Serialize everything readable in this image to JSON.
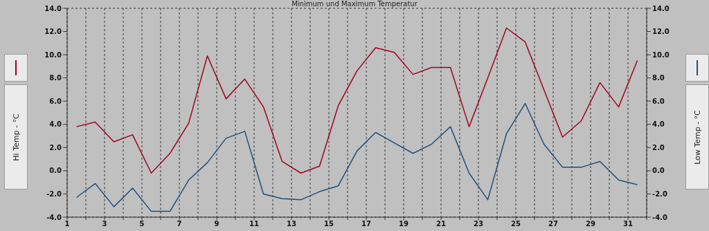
{
  "chart_data": {
    "type": "line",
    "title": "Minimum und Maximum Temperatur",
    "ylabel": "Hi Temp - °C",
    "y2label": "Low Temp - °C",
    "x": [
      1.5,
      2.5,
      3.5,
      4.5,
      5.5,
      6.5,
      7.5,
      8.5,
      9.5,
      10.5,
      11.5,
      12.5,
      13.5,
      14.5,
      15.5,
      16.5,
      17.5,
      18.5,
      19.5,
      20.5,
      21.5,
      22.5,
      23.5,
      24.5,
      25.5,
      26.5,
      27.5,
      28.5,
      29.5,
      30.5,
      31.5
    ],
    "series": [
      {
        "color": "#a0001e",
        "values": [
          3.8,
          4.2,
          2.5,
          3.1,
          -0.2,
          1.5,
          4.1,
          9.9,
          6.2,
          7.9,
          5.5,
          0.8,
          -0.2,
          0.4,
          5.6,
          8.6,
          10.6,
          10.2,
          8.3,
          8.9,
          8.9,
          3.8,
          8.0,
          12.3,
          11.1,
          7.0,
          2.9,
          4.3,
          7.6,
          5.5,
          9.5
        ]
      },
      {
        "color": "#1f4e79",
        "axis": "y2",
        "values": [
          -2.3,
          -1.1,
          -3.1,
          -1.5,
          -3.5,
          -3.5,
          -0.8,
          0.7,
          2.8,
          3.4,
          -2.0,
          -2.4,
          -2.5,
          -1.8,
          -1.3,
          1.7,
          3.3,
          2.4,
          1.5,
          2.3,
          3.8,
          -0.2,
          -2.5,
          3.2,
          5.8,
          2.3,
          0.3,
          0.3,
          0.8,
          -0.8,
          -1.2
        ]
      }
    ],
    "xlim": [
      1,
      32
    ],
    "xticks": [
      1,
      {
        "value": 2,
        "label": null
      },
      3,
      {
        "value": 4,
        "label": null
      },
      5,
      {
        "value": 6,
        "label": null
      },
      7,
      {
        "value": 8,
        "label": null
      },
      9,
      {
        "value": 10,
        "label": null
      },
      11,
      {
        "value": 12,
        "label": null
      },
      13,
      {
        "value": 14,
        "label": null
      },
      15,
      {
        "value": 16,
        "label": null
      },
      17,
      {
        "value": 18,
        "label": null
      },
      19,
      {
        "value": 20,
        "label": null
      },
      21,
      {
        "value": 22,
        "label": null
      },
      23,
      {
        "value": 24,
        "label": null
      },
      25,
      {
        "value": 26,
        "label": null
      },
      27,
      {
        "value": 28,
        "label": null
      },
      29,
      {
        "value": 30,
        "label": null
      },
      31,
      {
        "value": 32,
        "label": null
      }
    ],
    "ylim": [
      -4,
      14
    ],
    "yticks": [
      {
        "value": -4,
        "label": "-4.0"
      },
      {
        "value": -2,
        "label": "-2.0"
      },
      {
        "value": 0,
        "label": "0.0"
      },
      {
        "value": 2,
        "label": "2.0"
      },
      {
        "value": 4,
        "label": "4.0"
      },
      {
        "value": 6,
        "label": "6.0"
      },
      {
        "value": 8,
        "label": "8.0"
      },
      {
        "value": 10,
        "label": "10.0"
      },
      {
        "value": 12,
        "label": "12.0"
      },
      {
        "value": 14,
        "label": "14.0"
      }
    ],
    "y2lim": [
      -4,
      14
    ],
    "y2ticks": [
      {
        "value": -4,
        "label": "-4.0"
      },
      {
        "value": -2,
        "label": "-2.0"
      },
      {
        "value": 0,
        "label": "0.0"
      },
      {
        "value": 2,
        "label": "2.0"
      },
      {
        "value": 4,
        "label": "4.0"
      },
      {
        "value": 6,
        "label": "6.0"
      },
      {
        "value": 8,
        "label": "8.0"
      },
      {
        "value": 10,
        "label": "10.0"
      },
      {
        "value": 12,
        "label": "12.0"
      },
      {
        "value": 14,
        "label": "14.0"
      }
    ],
    "grid": true,
    "marker": "none",
    "line_style": "solid",
    "legend": false
  }
}
